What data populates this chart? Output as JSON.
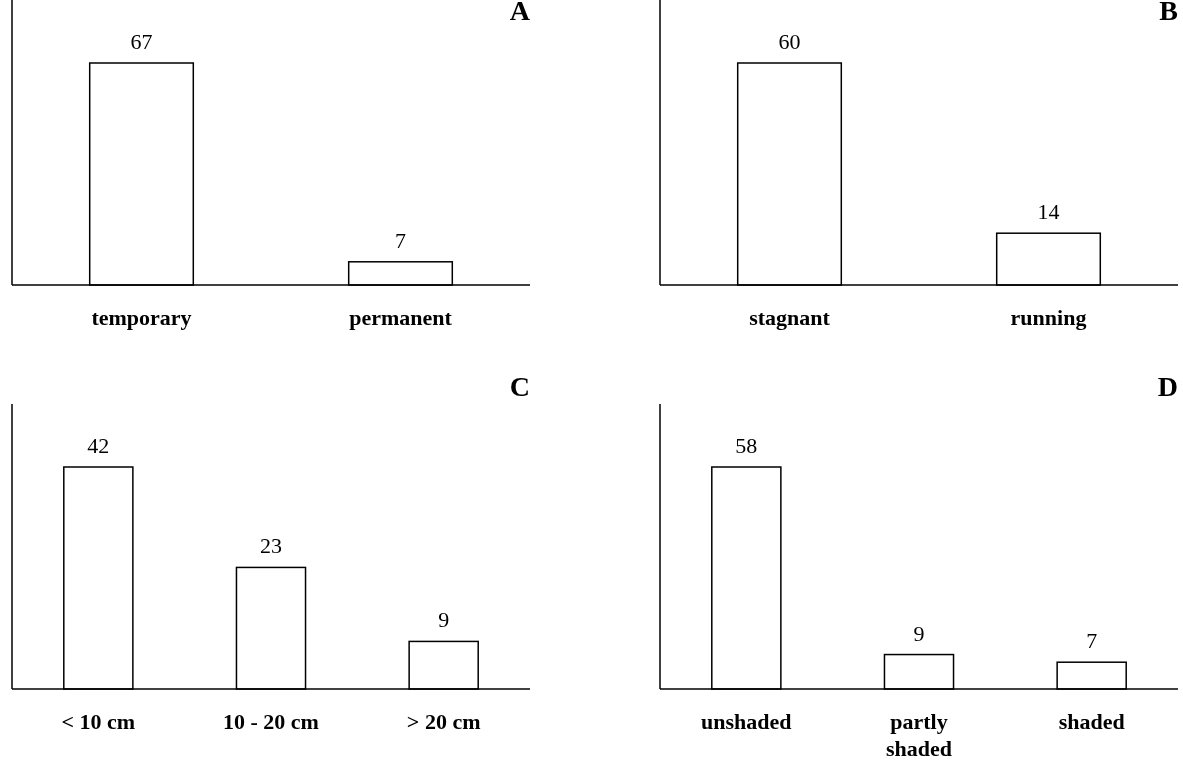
{
  "chart_data": [
    {
      "type": "bar",
      "title": "A",
      "categories": [
        "temporary",
        "permanent"
      ],
      "values": [
        67,
        7
      ],
      "color": "#ffffff",
      "data_labels": true,
      "tick_labels": "x"
    },
    {
      "type": "bar",
      "title": "B",
      "categories": [
        "stagnant",
        "running"
      ],
      "values": [
        60,
        14
      ],
      "color": "#ffffff",
      "data_labels": true,
      "tick_labels": "x"
    },
    {
      "type": "bar",
      "title": "C",
      "categories": [
        "< 10 cm",
        "10 - 20 cm",
        "> 20 cm"
      ],
      "values": [
        42,
        23,
        9
      ],
      "color": "#ffffff",
      "data_labels": true,
      "tick_labels": "x"
    },
    {
      "type": "bar",
      "title": "D",
      "categories": [
        "unshaded",
        "partly shaded",
        "shaded"
      ],
      "values": [
        58,
        9,
        7
      ],
      "color": "#ffffff",
      "data_labels": true,
      "tick_labels": "x"
    }
  ]
}
